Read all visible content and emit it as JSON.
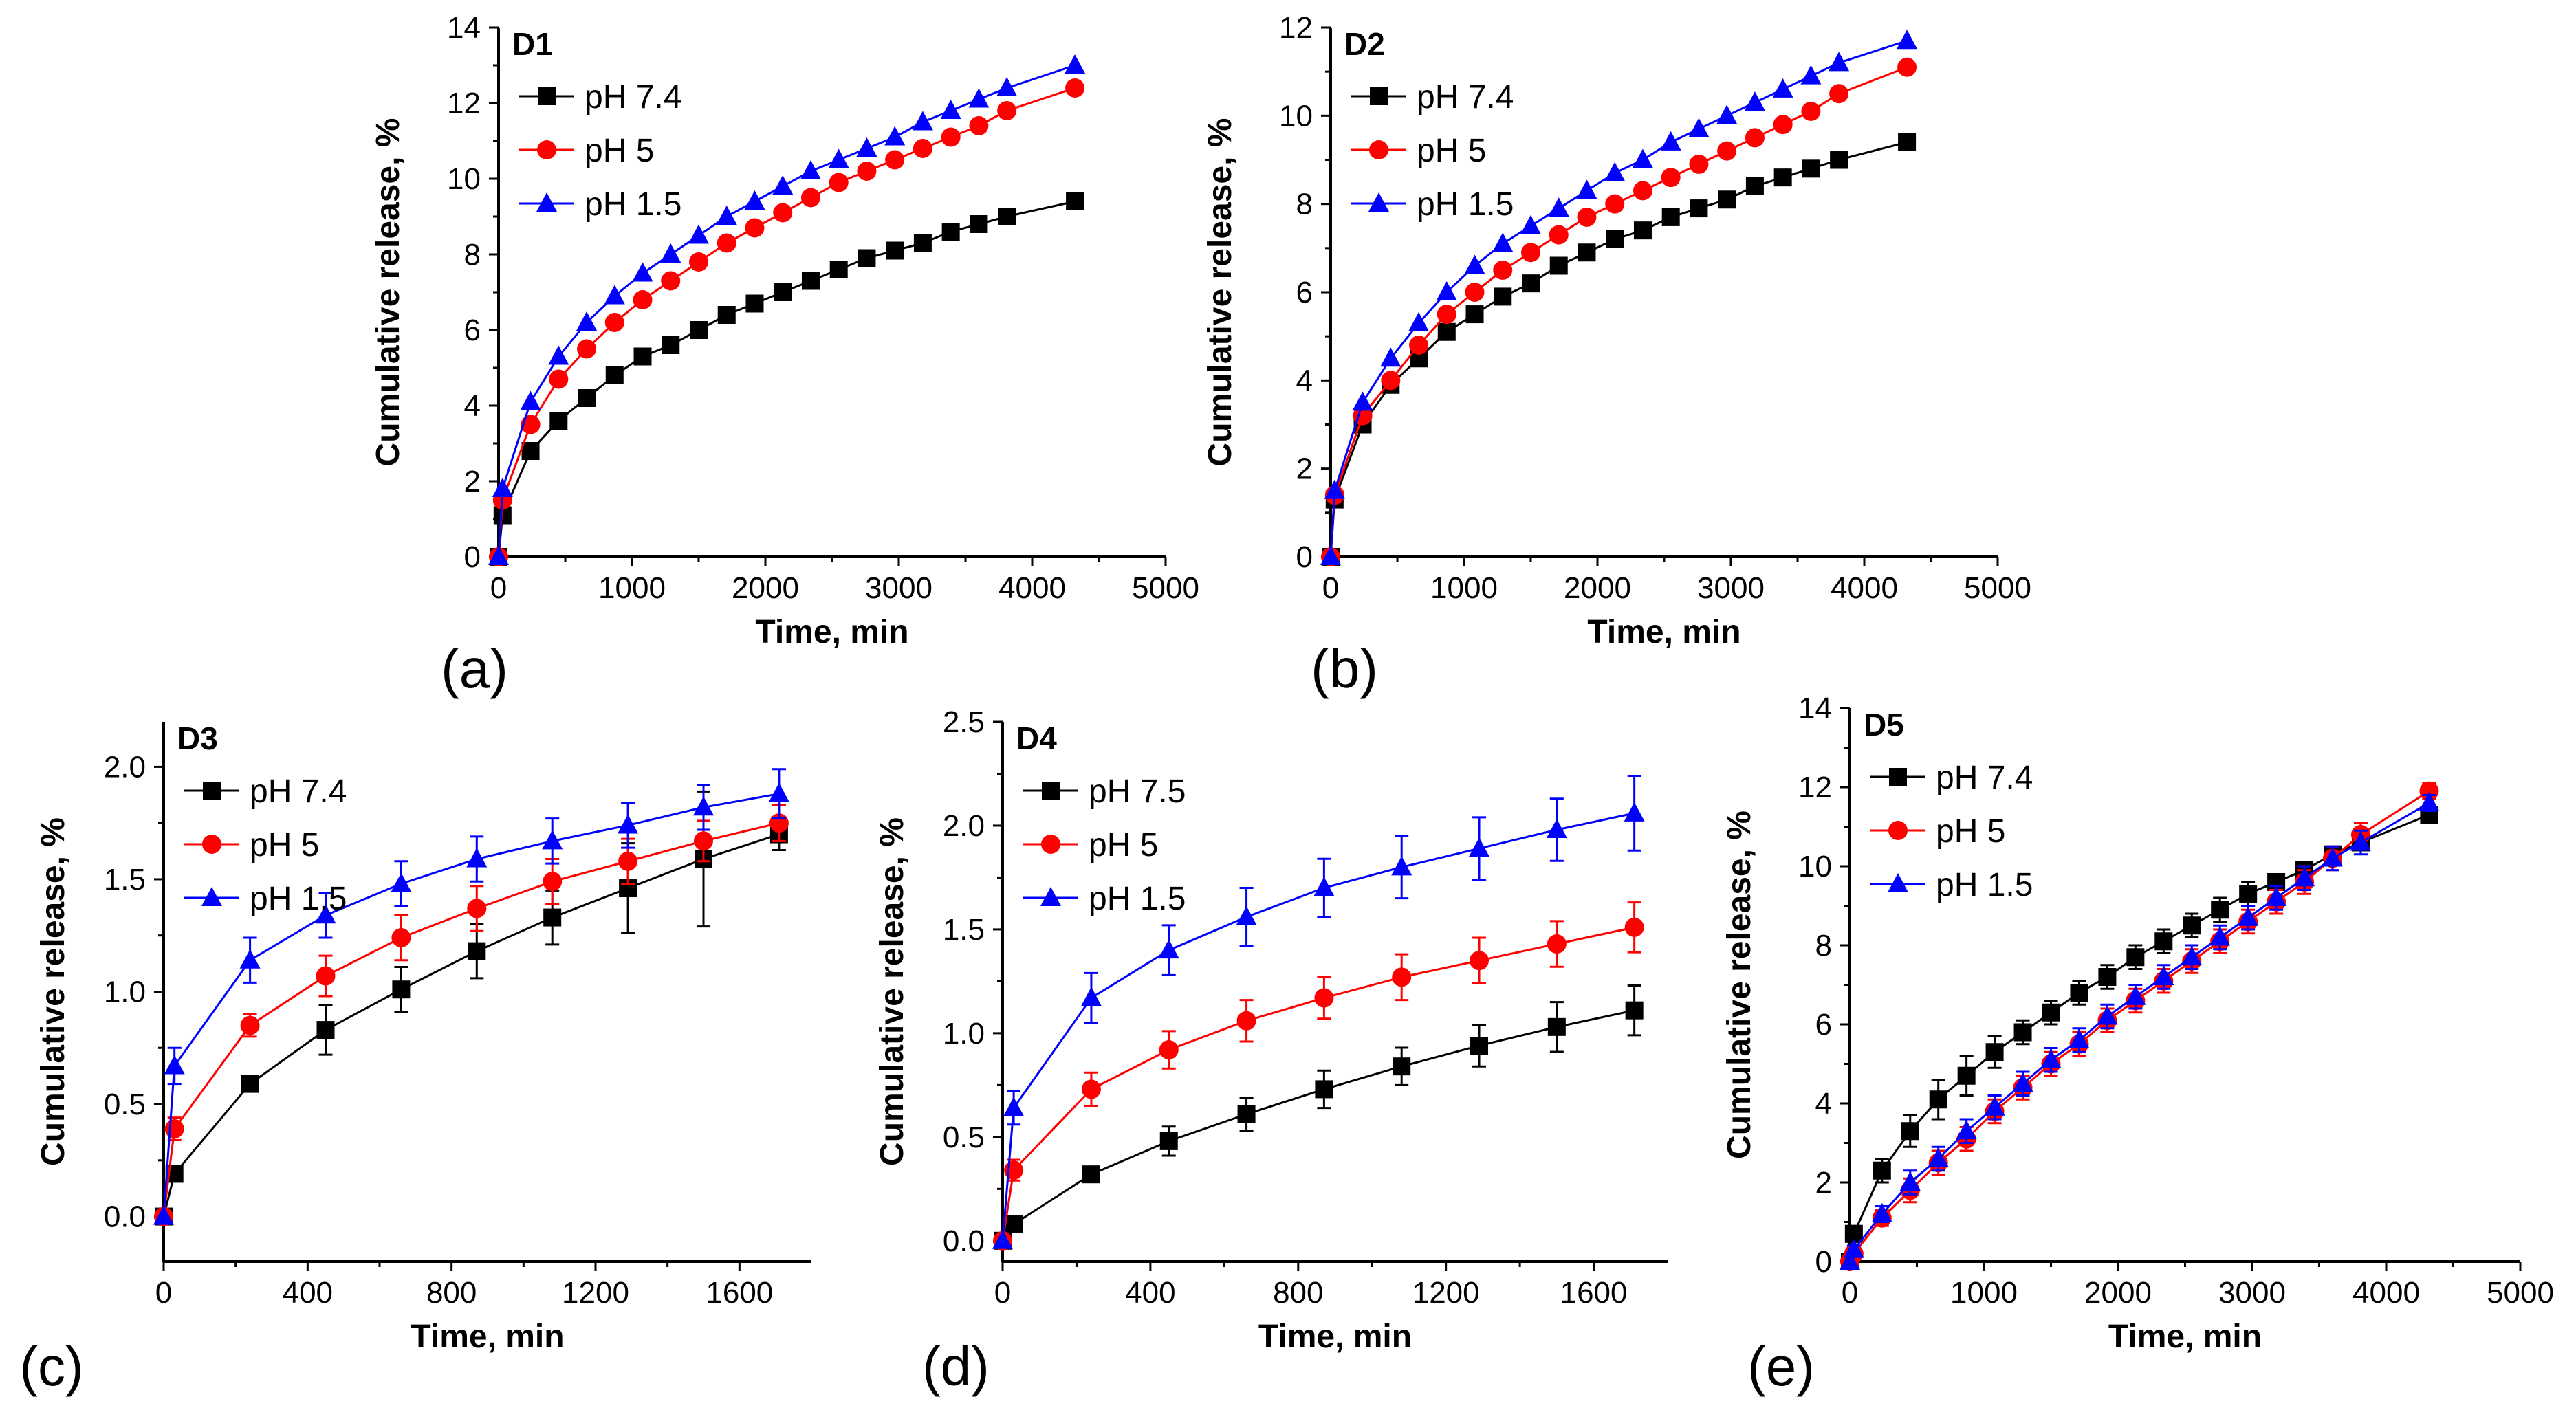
{
  "figure": {
    "captions": [
      "(a)",
      "(b)",
      "(c)",
      "(d)",
      "(e)"
    ]
  },
  "chart_data": [
    {
      "type": "line",
      "panel": "a",
      "title": "D1",
      "xlabel": "Time, min",
      "ylabel": "Cumulative release, %",
      "xlim": [
        0,
        5000
      ],
      "ylim": [
        0,
        14
      ],
      "xticks": [
        0,
        1000,
        2000,
        3000,
        4000,
        5000
      ],
      "yticks": [
        0,
        2,
        4,
        6,
        8,
        10,
        12,
        14
      ],
      "legend": "top-left",
      "series": [
        {
          "name": "pH 7.4",
          "color": "#000000",
          "marker": "square",
          "x": [
            0,
            30,
            240,
            450,
            660,
            870,
            1080,
            1290,
            1500,
            1710,
            1920,
            2130,
            2340,
            2550,
            2760,
            2970,
            3180,
            3390,
            3600,
            3810,
            4320
          ],
          "y": [
            0,
            1.1,
            2.8,
            3.6,
            4.2,
            4.8,
            5.3,
            5.6,
            6.0,
            6.4,
            6.7,
            7.0,
            7.3,
            7.6,
            7.9,
            8.1,
            8.3,
            8.6,
            8.8,
            9.0,
            9.4
          ]
        },
        {
          "name": "pH 5",
          "color": "#ff0000",
          "marker": "circle",
          "x": [
            0,
            30,
            240,
            450,
            660,
            870,
            1080,
            1290,
            1500,
            1710,
            1920,
            2130,
            2340,
            2550,
            2760,
            2970,
            3180,
            3390,
            3600,
            3810,
            4320
          ],
          "y": [
            0,
            1.5,
            3.5,
            4.7,
            5.5,
            6.2,
            6.8,
            7.3,
            7.8,
            8.3,
            8.7,
            9.1,
            9.5,
            9.9,
            10.2,
            10.5,
            10.8,
            11.1,
            11.4,
            11.8,
            12.4
          ]
        },
        {
          "name": "pH 1.5",
          "color": "#0000ff",
          "marker": "triangle",
          "x": [
            0,
            30,
            240,
            450,
            660,
            870,
            1080,
            1290,
            1500,
            1710,
            1920,
            2130,
            2340,
            2550,
            2760,
            2970,
            3180,
            3390,
            3600,
            3810,
            4320
          ],
          "y": [
            0,
            1.8,
            4.1,
            5.3,
            6.2,
            6.9,
            7.5,
            8.0,
            8.5,
            9.0,
            9.4,
            9.8,
            10.2,
            10.5,
            10.8,
            11.1,
            11.5,
            11.8,
            12.1,
            12.4,
            13.0
          ]
        }
      ]
    },
    {
      "type": "line",
      "panel": "b",
      "title": "D2",
      "xlabel": "Time, min",
      "ylabel": "Cumulative release, %",
      "xlim": [
        0,
        5000
      ],
      "ylim": [
        0,
        12
      ],
      "xticks": [
        0,
        1000,
        2000,
        3000,
        4000,
        5000
      ],
      "yticks": [
        0,
        2,
        4,
        6,
        8,
        10,
        12
      ],
      "legend": "top-left",
      "series": [
        {
          "name": "pH 7.4",
          "color": "#000000",
          "marker": "square",
          "x": [
            0,
            30,
            240,
            450,
            660,
            870,
            1080,
            1290,
            1500,
            1710,
            1920,
            2130,
            2340,
            2550,
            2760,
            2970,
            3180,
            3390,
            3600,
            3810,
            4320
          ],
          "y": [
            0,
            1.3,
            3.0,
            3.9,
            4.5,
            5.1,
            5.5,
            5.9,
            6.2,
            6.6,
            6.9,
            7.2,
            7.4,
            7.7,
            7.9,
            8.1,
            8.4,
            8.6,
            8.8,
            9.0,
            9.4
          ]
        },
        {
          "name": "pH 5",
          "color": "#ff0000",
          "marker": "circle",
          "x": [
            0,
            30,
            240,
            450,
            660,
            870,
            1080,
            1290,
            1500,
            1710,
            1920,
            2130,
            2340,
            2550,
            2760,
            2970,
            3180,
            3390,
            3600,
            3810,
            4320
          ],
          "y": [
            0,
            1.4,
            3.2,
            4.0,
            4.8,
            5.5,
            6.0,
            6.5,
            6.9,
            7.3,
            7.7,
            8.0,
            8.3,
            8.6,
            8.9,
            9.2,
            9.5,
            9.8,
            10.1,
            10.5,
            11.1
          ]
        },
        {
          "name": "pH 1.5",
          "color": "#0000ff",
          "marker": "triangle",
          "x": [
            0,
            30,
            240,
            450,
            660,
            870,
            1080,
            1290,
            1500,
            1710,
            1920,
            2130,
            2340,
            2550,
            2760,
            2970,
            3180,
            3390,
            3600,
            3810,
            4320
          ],
          "y": [
            0,
            1.5,
            3.5,
            4.5,
            5.3,
            6.0,
            6.6,
            7.1,
            7.5,
            7.9,
            8.3,
            8.7,
            9.0,
            9.4,
            9.7,
            10.0,
            10.3,
            10.6,
            10.9,
            11.2,
            11.7
          ]
        }
      ]
    },
    {
      "type": "line",
      "panel": "c",
      "title": "D3",
      "xlabel": "Time, min",
      "ylabel": "Cumulative release, %",
      "xlim": [
        0,
        1800
      ],
      "ylim": [
        -0.2,
        2.2
      ],
      "xticks": [
        0,
        400,
        800,
        1200,
        1600
      ],
      "yticks": [
        0.0,
        0.5,
        1.0,
        1.5,
        2.0
      ],
      "ytick_labels": [
        "0.0",
        "0.5",
        "1.0",
        "1.5",
        "2.0"
      ],
      "legend": "top-left",
      "series": [
        {
          "name": "pH 7.4",
          "color": "#000000",
          "marker": "square",
          "x": [
            0,
            30,
            240,
            450,
            660,
            870,
            1080,
            1290,
            1500,
            1710
          ],
          "y": [
            0,
            0.19,
            0.59,
            0.83,
            1.01,
            1.18,
            1.33,
            1.46,
            1.59,
            1.7
          ],
          "err": [
            0,
            0.02,
            0.03,
            0.11,
            0.1,
            0.12,
            0.12,
            0.2,
            0.3,
            0.07
          ]
        },
        {
          "name": "pH 5",
          "color": "#ff0000",
          "marker": "circle",
          "x": [
            0,
            30,
            240,
            450,
            660,
            870,
            1080,
            1290,
            1500,
            1710
          ],
          "y": [
            0,
            0.39,
            0.85,
            1.07,
            1.24,
            1.37,
            1.49,
            1.58,
            1.67,
            1.75
          ],
          "err": [
            0,
            0.05,
            0.05,
            0.09,
            0.1,
            0.1,
            0.1,
            0.1,
            0.09,
            0.08
          ]
        },
        {
          "name": "pH 1.5",
          "color": "#0000ff",
          "marker": "triangle",
          "x": [
            0,
            30,
            240,
            450,
            660,
            870,
            1080,
            1290,
            1500,
            1710
          ],
          "y": [
            0,
            0.67,
            1.14,
            1.34,
            1.48,
            1.59,
            1.67,
            1.74,
            1.82,
            1.88
          ],
          "err": [
            0,
            0.08,
            0.1,
            0.1,
            0.1,
            0.1,
            0.1,
            0.1,
            0.1,
            0.11
          ]
        }
      ]
    },
    {
      "type": "line",
      "panel": "d",
      "title": "D4",
      "xlabel": "Time, min",
      "ylabel": "Cumulative release, %",
      "xlim": [
        0,
        1800
      ],
      "ylim": [
        -0.1,
        2.5
      ],
      "xticks": [
        0,
        400,
        800,
        1200,
        1600
      ],
      "yticks": [
        0.0,
        0.5,
        1.0,
        1.5,
        2.0,
        2.5
      ],
      "ytick_labels": [
        "0.0",
        "0.5",
        "1.0",
        "1.5",
        "2.0",
        "2.5"
      ],
      "legend": "top-left",
      "series": [
        {
          "name": "pH 7.5",
          "color": "#000000",
          "marker": "square",
          "x": [
            0,
            30,
            240,
            450,
            660,
            870,
            1080,
            1290,
            1500,
            1710
          ],
          "y": [
            0,
            0.08,
            0.32,
            0.48,
            0.61,
            0.73,
            0.84,
            0.94,
            1.03,
            1.11
          ],
          "err": [
            0,
            0.02,
            0.03,
            0.07,
            0.08,
            0.09,
            0.09,
            0.1,
            0.12,
            0.12
          ]
        },
        {
          "name": "pH 5",
          "color": "#ff0000",
          "marker": "circle",
          "x": [
            0,
            30,
            240,
            450,
            660,
            870,
            1080,
            1290,
            1500,
            1710
          ],
          "y": [
            0,
            0.34,
            0.73,
            0.92,
            1.06,
            1.17,
            1.27,
            1.35,
            1.43,
            1.51
          ],
          "err": [
            0,
            0.05,
            0.08,
            0.09,
            0.1,
            0.1,
            0.11,
            0.11,
            0.11,
            0.12
          ]
        },
        {
          "name": "pH 1.5",
          "color": "#0000ff",
          "marker": "triangle",
          "x": [
            0,
            30,
            240,
            450,
            660,
            870,
            1080,
            1290,
            1500,
            1710
          ],
          "y": [
            0,
            0.64,
            1.17,
            1.4,
            1.56,
            1.7,
            1.8,
            1.89,
            1.98,
            2.06
          ],
          "err": [
            0,
            0.08,
            0.12,
            0.12,
            0.14,
            0.14,
            0.15,
            0.15,
            0.15,
            0.18
          ]
        }
      ]
    },
    {
      "type": "line",
      "panel": "e",
      "title": "D5",
      "xlabel": "Time, min",
      "ylabel": "Cumulative release, %",
      "xlim": [
        0,
        5000
      ],
      "ylim": [
        0,
        14
      ],
      "xticks": [
        0,
        1000,
        2000,
        3000,
        4000,
        5000
      ],
      "yticks": [
        0,
        2,
        4,
        6,
        8,
        10,
        12,
        14
      ],
      "legend": "top-left",
      "series": [
        {
          "name": "pH 7.4",
          "color": "#000000",
          "marker": "square",
          "x": [
            0,
            30,
            240,
            450,
            660,
            870,
            1080,
            1290,
            1500,
            1710,
            1920,
            2130,
            2340,
            2550,
            2760,
            2970,
            3180,
            3390,
            3600,
            3810,
            4320
          ],
          "y": [
            0,
            0.7,
            2.3,
            3.3,
            4.1,
            4.7,
            5.3,
            5.8,
            6.3,
            6.8,
            7.2,
            7.7,
            8.1,
            8.5,
            8.9,
            9.3,
            9.6,
            9.9,
            10.3,
            10.6,
            11.3
          ],
          "err": [
            0,
            0.2,
            0.3,
            0.4,
            0.5,
            0.5,
            0.4,
            0.3,
            0.3,
            0.3,
            0.3,
            0.3,
            0.3,
            0.3,
            0.3,
            0.3,
            0.2,
            0.2,
            0.2,
            0.2,
            0.2
          ]
        },
        {
          "name": "pH 5",
          "color": "#ff0000",
          "marker": "circle",
          "x": [
            0,
            30,
            240,
            450,
            660,
            870,
            1080,
            1290,
            1500,
            1710,
            1920,
            2130,
            2340,
            2550,
            2760,
            2970,
            3180,
            3390,
            3600,
            3810,
            4320
          ],
          "y": [
            0,
            0.2,
            1.1,
            1.8,
            2.5,
            3.1,
            3.8,
            4.4,
            5.0,
            5.5,
            6.1,
            6.6,
            7.1,
            7.6,
            8.1,
            8.6,
            9.1,
            9.6,
            10.2,
            10.8,
            11.9
          ],
          "err": [
            0,
            0.1,
            0.2,
            0.3,
            0.3,
            0.3,
            0.3,
            0.3,
            0.3,
            0.3,
            0.3,
            0.3,
            0.3,
            0.3,
            0.3,
            0.3,
            0.3,
            0.3,
            0.3,
            0.3,
            0.2
          ]
        },
        {
          "name": "pH 1.5",
          "color": "#0000ff",
          "marker": "triangle",
          "x": [
            0,
            30,
            240,
            450,
            660,
            870,
            1080,
            1290,
            1500,
            1710,
            1920,
            2130,
            2340,
            2550,
            2760,
            2970,
            3180,
            3390,
            3600,
            3810,
            4320
          ],
          "y": [
            0,
            0.3,
            1.2,
            2.0,
            2.6,
            3.3,
            3.9,
            4.5,
            5.1,
            5.6,
            6.2,
            6.7,
            7.2,
            7.7,
            8.2,
            8.7,
            9.2,
            9.7,
            10.2,
            10.6,
            11.6
          ],
          "err": [
            0,
            0.1,
            0.2,
            0.3,
            0.3,
            0.3,
            0.3,
            0.3,
            0.3,
            0.3,
            0.3,
            0.3,
            0.3,
            0.3,
            0.3,
            0.3,
            0.3,
            0.3,
            0.3,
            0.3,
            0.2
          ]
        }
      ]
    }
  ]
}
